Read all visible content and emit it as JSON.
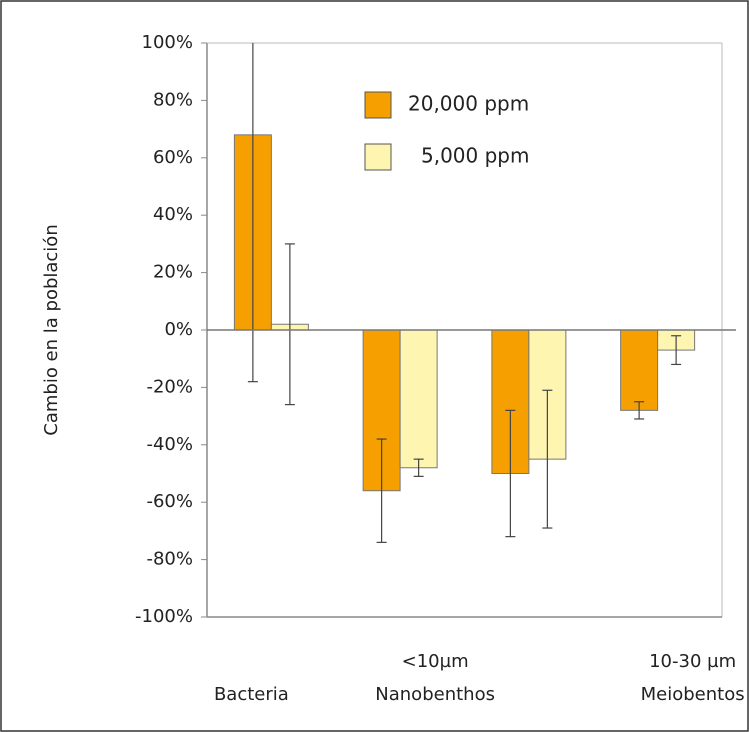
{
  "chart_data": {
    "type": "bar",
    "y_label": "Cambio en la población",
    "categories": [
      [
        "Bacteria"
      ],
      [
        "<10µm",
        "Nanobenthos"
      ],
      null,
      [
        "10-30 µm",
        "Meiobentos"
      ]
    ],
    "series": [
      {
        "name": "20,000 ppm",
        "color": "#f5a000",
        "values": [
          68,
          -56,
          -50,
          -28
        ],
        "errors": [
          86,
          18,
          22,
          3
        ]
      },
      {
        "name": "5,000 ppm",
        "color": "#fdf5b0",
        "values": [
          2,
          -48,
          -45,
          -7
        ],
        "errors": [
          28,
          3,
          24,
          5
        ]
      }
    ],
    "ylim": [
      -100,
      100
    ],
    "yticks": [
      {
        "value": 100,
        "label": "100%"
      },
      {
        "value": 80,
        "label": "80%"
      },
      {
        "value": 60,
        "label": "60%"
      },
      {
        "value": 40,
        "label": "40%"
      },
      {
        "value": 20,
        "label": "20%"
      },
      {
        "value": 0,
        "label": "0%"
      },
      {
        "value": -20,
        "label": "-20%"
      },
      {
        "value": -40,
        "label": "-40%"
      },
      {
        "value": -60,
        "label": "-60%"
      },
      {
        "value": -80,
        "label": "-80%"
      },
      {
        "value": -100,
        "label": "-100%"
      }
    ]
  }
}
